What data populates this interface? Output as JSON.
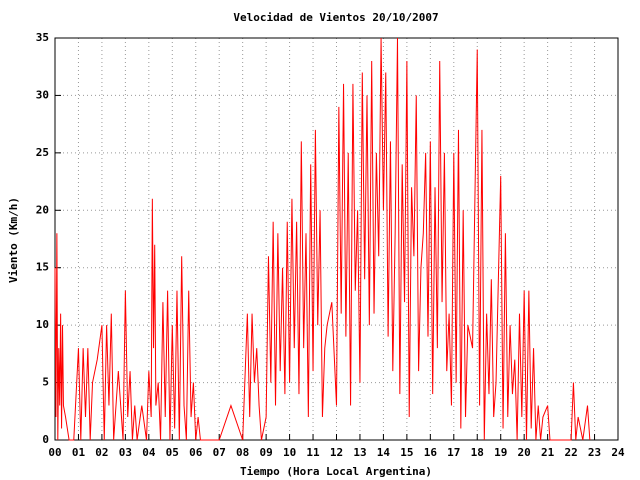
{
  "chart_data": {
    "type": "line",
    "title": "Velocidad de Vientos 20/10/2007",
    "xlabel": "Tiempo (Hora Local Argentina)",
    "ylabel": "Viento (Km/h)",
    "color": "#ff0000",
    "grid": true,
    "xlim": [
      0,
      24
    ],
    "ylim": [
      0,
      35
    ],
    "xticks": [
      {
        "value": 0,
        "label": "00"
      },
      {
        "value": 1,
        "label": "01"
      },
      {
        "value": 2,
        "label": "02"
      },
      {
        "value": 3,
        "label": "03"
      },
      {
        "value": 4,
        "label": "04"
      },
      {
        "value": 5,
        "label": "05"
      },
      {
        "value": 6,
        "label": "06"
      },
      {
        "value": 7,
        "label": "07"
      },
      {
        "value": 8,
        "label": "08"
      },
      {
        "value": 9,
        "label": "09"
      },
      10,
      11,
      12,
      13,
      14,
      15,
      16,
      17,
      18,
      19,
      20,
      21,
      22,
      23,
      24
    ],
    "yticks": [
      0,
      5,
      10,
      15,
      20,
      25,
      30,
      35
    ],
    "x": [
      0,
      0.04,
      0.08,
      0.12,
      0.16,
      0.2,
      0.24,
      0.28,
      0.32,
      0.36,
      0.45,
      0.6,
      0.8,
      1.0,
      1.1,
      1.2,
      1.3,
      1.4,
      1.5,
      1.6,
      1.8,
      2.0,
      2.1,
      2.2,
      2.3,
      2.4,
      2.5,
      2.7,
      2.9,
      3.0,
      3.1,
      3.2,
      3.3,
      3.4,
      3.5,
      3.7,
      3.9,
      4.0,
      4.1,
      4.15,
      4.2,
      4.25,
      4.3,
      4.4,
      4.5,
      4.6,
      4.7,
      4.8,
      4.9,
      5.0,
      5.1,
      5.2,
      5.3,
      5.4,
      5.5,
      5.6,
      5.7,
      5.8,
      5.9,
      6.0,
      6.1,
      6.2,
      6.4,
      6.6,
      7.0,
      7.5,
      8.0,
      8.2,
      8.3,
      8.4,
      8.5,
      8.6,
      8.7,
      8.8,
      9.0,
      9.1,
      9.2,
      9.3,
      9.4,
      9.5,
      9.6,
      9.7,
      9.8,
      9.9,
      10.0,
      10.1,
      10.2,
      10.3,
      10.4,
      10.5,
      10.6,
      10.7,
      10.8,
      10.9,
      11.0,
      11.1,
      11.2,
      11.3,
      11.4,
      11.5,
      11.6,
      11.8,
      12.0,
      12.1,
      12.2,
      12.3,
      12.4,
      12.5,
      12.6,
      12.7,
      12.8,
      12.9,
      13.0,
      13.1,
      13.2,
      13.3,
      13.4,
      13.5,
      13.6,
      13.7,
      13.8,
      13.9,
      14.0,
      14.1,
      14.2,
      14.3,
      14.4,
      14.5,
      14.6,
      14.7,
      14.8,
      14.9,
      15.0,
      15.1,
      15.2,
      15.3,
      15.4,
      15.5,
      15.6,
      15.7,
      15.8,
      15.9,
      16.0,
      16.1,
      16.2,
      16.3,
      16.4,
      16.5,
      16.6,
      16.7,
      16.8,
      16.9,
      17.0,
      17.1,
      17.2,
      17.3,
      17.4,
      17.5,
      17.6,
      17.8,
      18.0,
      18.1,
      18.2,
      18.3,
      18.4,
      18.5,
      18.6,
      18.7,
      18.8,
      19.0,
      19.1,
      19.2,
      19.3,
      19.4,
      19.5,
      19.6,
      19.7,
      19.8,
      19.9,
      20.0,
      20.1,
      20.2,
      20.3,
      20.4,
      20.5,
      20.6,
      20.7,
      20.8,
      21.0,
      21.1,
      21.3,
      21.6,
      22.0,
      22.1,
      22.2,
      22.3,
      22.5,
      22.7,
      22.8
    ],
    "values": [
      15,
      2,
      18,
      0,
      8,
      3,
      11,
      1,
      10,
      3,
      2,
      0,
      0,
      8,
      0,
      8,
      2,
      8,
      0,
      5,
      7,
      10,
      0,
      10,
      3,
      11,
      0,
      6,
      0,
      13,
      2,
      6,
      0,
      3,
      0,
      3,
      0,
      6,
      2,
      21,
      8,
      17,
      3,
      5,
      0,
      12,
      2,
      13,
      0,
      10,
      1,
      13,
      0,
      16,
      3,
      0,
      13,
      2,
      5,
      0,
      2,
      0,
      0,
      0,
      0,
      3,
      0,
      11,
      2,
      11,
      5,
      8,
      3,
      0,
      2,
      16,
      5,
      19,
      3,
      18,
      6,
      15,
      4,
      19,
      5,
      21,
      8,
      19,
      4,
      26,
      8,
      18,
      2,
      24,
      6,
      27,
      10,
      20,
      2,
      8,
      10,
      12,
      3,
      29,
      11,
      31,
      9,
      25,
      3,
      31,
      13,
      20,
      5,
      32,
      14,
      30,
      10,
      33,
      11,
      25,
      16,
      35,
      20,
      32,
      9,
      26,
      6,
      18,
      35,
      4,
      24,
      12,
      33,
      2,
      22,
      16,
      30,
      6,
      15,
      18,
      25,
      9,
      26,
      4,
      22,
      8,
      33,
      12,
      25,
      6,
      11,
      3,
      25,
      5,
      27,
      1,
      20,
      2,
      10,
      8,
      34,
      3,
      27,
      0,
      11,
      4,
      14,
      2,
      5,
      23,
      1,
      18,
      2,
      10,
      4,
      7,
      0,
      11,
      2,
      13,
      0,
      13,
      1,
      8,
      0,
      3,
      0,
      2,
      3,
      0,
      0,
      0,
      0,
      5,
      0,
      2,
      0,
      3,
      0
    ]
  }
}
